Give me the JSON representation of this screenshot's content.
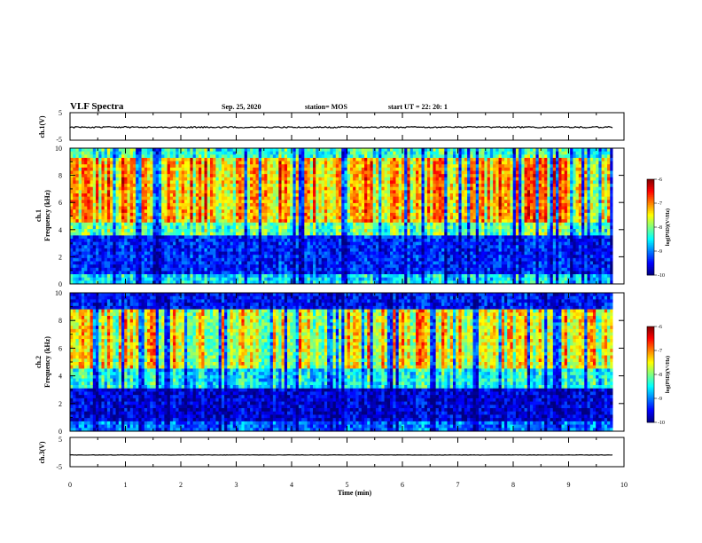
{
  "header": {
    "title": "VLF Spectra",
    "date": "Sep. 25, 2020",
    "station": "station= MOS",
    "start": "start  UT =   22: 20: 1"
  },
  "chart_data": {
    "type": "heatmap",
    "x": {
      "label": "Time (min)",
      "range": [
        0,
        10
      ],
      "ticks": [
        "0",
        "1",
        "2",
        "3",
        "4",
        "5",
        "6",
        "7",
        "8",
        "9",
        "10"
      ]
    },
    "panels": [
      {
        "id": "ch1-waveform",
        "ylabel": "ch.1(V)",
        "ylim": [
          -5,
          5
        ],
        "yticks": [
          "5",
          "-5"
        ],
        "trace_value": -0.3
      },
      {
        "id": "ch1-spectrogram",
        "ylabel_top": "ch.1",
        "ylabel": "Frequency (kHz)",
        "ylim": [
          0,
          10
        ],
        "yticks": [
          "0",
          "2",
          "4",
          "6",
          "8",
          "10"
        ],
        "data_end_min": 9.8,
        "colorbar": {
          "label": "log(PSD)(V²/Hz)",
          "range": [
            -10,
            -6
          ],
          "ticks": [
            "-6",
            "-7",
            "-8",
            "-9",
            "-10"
          ]
        }
      },
      {
        "id": "ch2-spectrogram",
        "ylabel_top": "ch.2",
        "ylabel": "Frequency (kHz)",
        "ylim": [
          0,
          10
        ],
        "yticks": [
          "0",
          "2",
          "4",
          "6",
          "8",
          "10"
        ],
        "data_end_min": 9.8,
        "colorbar": {
          "label": "log(PSD)(V²/Hz)",
          "range": [
            -10,
            -6
          ],
          "ticks": [
            "-6",
            "-7",
            "-8",
            "-9",
            "-10"
          ]
        }
      },
      {
        "id": "ch3-waveform",
        "ylabel": "ch.3(V)",
        "ylim": [
          -5,
          5
        ],
        "yticks": [
          "5",
          "-5"
        ],
        "trace_value": -1.0
      }
    ]
  }
}
